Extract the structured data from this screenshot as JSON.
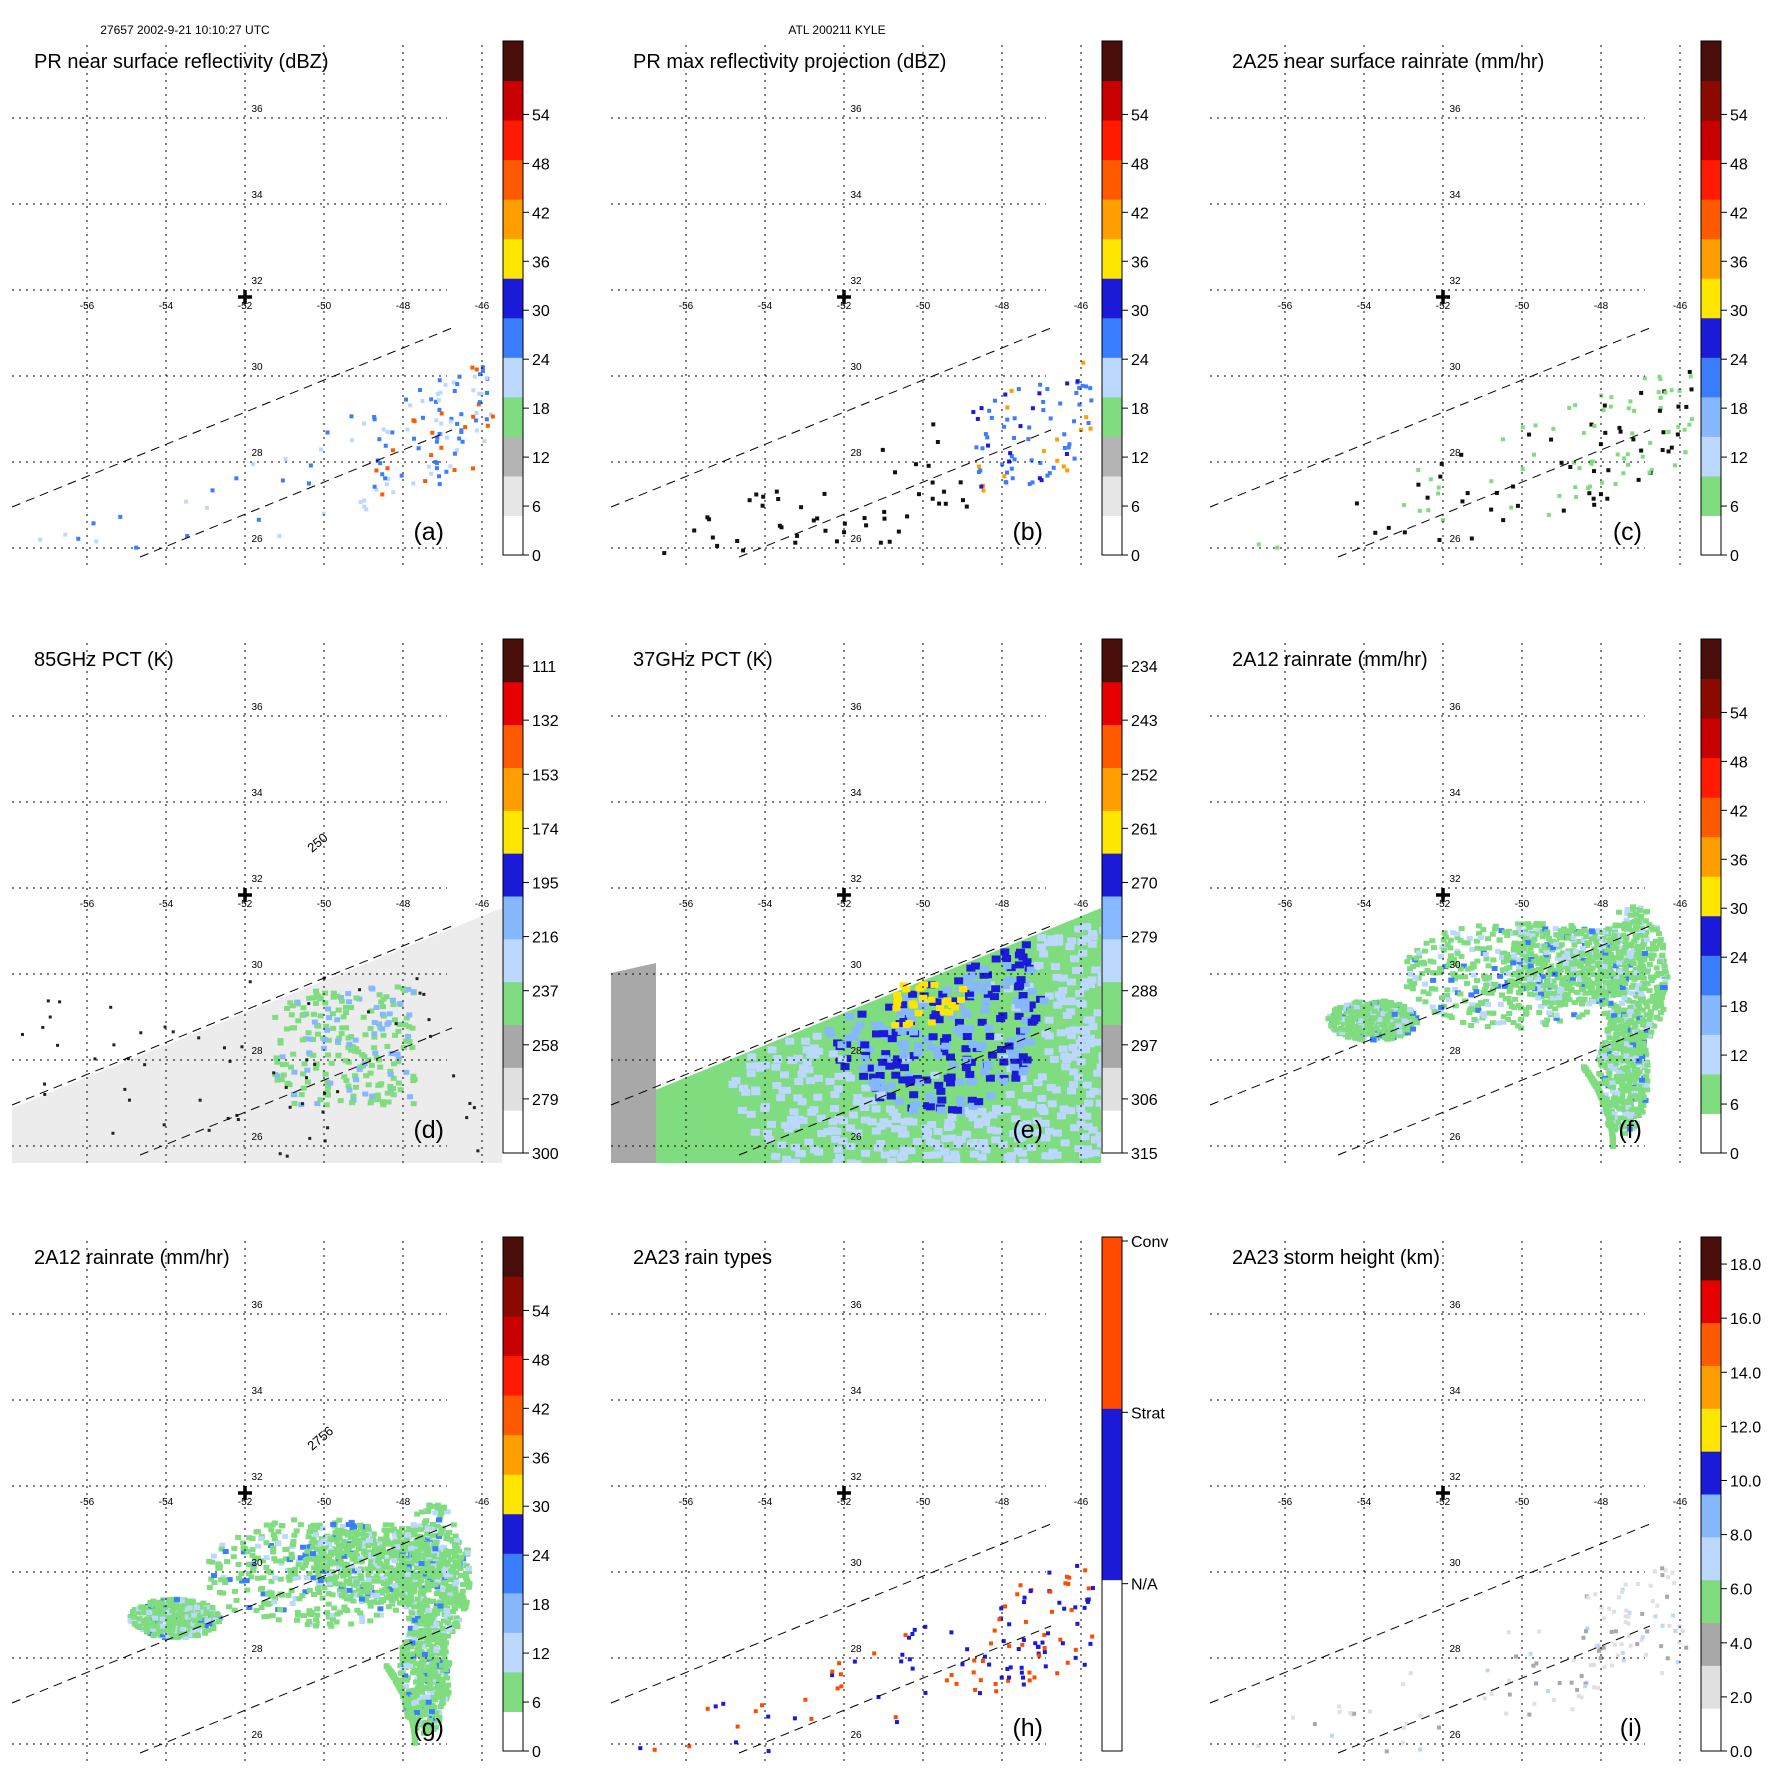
{
  "header": {
    "left": "27657 2002-9-21 10:10:27 UTC",
    "center": "ATL 200211 KYLE"
  },
  "colors": {
    "rain": [
      "#ffffff",
      "#7fdc7f",
      "#bcd8ff",
      "#86b8ff",
      "#3a7dff",
      "#1a1ad8",
      "#ffe600",
      "#ff9e00",
      "#ff5a00",
      "#ff1a00",
      "#c80000",
      "#8a0a00",
      "#4a0e0a"
    ],
    "refl": [
      "#ffffff",
      "#e6e6e6",
      "#b4b4b4",
      "#7fdc7f",
      "#bcd8ff",
      "#3a7dff",
      "#1a1ad8",
      "#ffe600",
      "#ff9e00",
      "#ff5a00",
      "#ff1a00",
      "#c80000",
      "#4a0e0a"
    ],
    "pct": [
      "#ffffff",
      "#e0e0e0",
      "#a8a8a8",
      "#7fdc7f",
      "#bcd8ff",
      "#86b8ff",
      "#1a1ad8",
      "#ffe600",
      "#ff9e00",
      "#ff5a00",
      "#e60000",
      "#4a0e0a"
    ],
    "height": [
      "#ffffff",
      "#e0e0e0",
      "#a8a8a8",
      "#7fdc7f",
      "#bcd8ff",
      "#86b8ff",
      "#1a1ad8",
      "#ffe600",
      "#ff9e00",
      "#ff5a00",
      "#e60000",
      "#4a0e0a"
    ],
    "types": [
      "#ffffff",
      "#1a1ad8",
      "#ff4a00"
    ]
  },
  "chart_data": [
    {
      "id": "a",
      "type": "heatmap",
      "title": "PR near surface reflectivity (dBZ)",
      "label": "(a)",
      "colorbar": {
        "ticks": [
          "0",
          "6",
          "12",
          "18",
          "24",
          "30",
          "36",
          "42",
          "48",
          "54"
        ],
        "palette": "refl"
      },
      "lon_ticks": [
        "-56",
        "-54",
        "-52",
        "-50",
        "-48",
        "-46"
      ],
      "lat_ticks": [
        "26",
        "28",
        "30",
        "32",
        "34",
        "36"
      ],
      "swath": true,
      "field": "pr"
    },
    {
      "id": "b",
      "type": "heatmap",
      "title": "PR max reflectivity projection (dBZ)",
      "label": "(b)",
      "colorbar": {
        "ticks": [
          "0",
          "6",
          "12",
          "18",
          "24",
          "30",
          "36",
          "42",
          "48",
          "54"
        ],
        "palette": "refl"
      },
      "lon_ticks": [
        "-56",
        "-54",
        "-52",
        "-50",
        "-48",
        "-46"
      ],
      "lat_ticks": [
        "26",
        "28",
        "30",
        "32",
        "34",
        "36"
      ],
      "swath": true,
      "field": "prmax"
    },
    {
      "id": "c",
      "type": "heatmap",
      "title": "2A25 near surface rainrate (mm/hr)",
      "label": "(c)",
      "colorbar": {
        "ticks": [
          "0",
          "6",
          "12",
          "18",
          "24",
          "30",
          "36",
          "42",
          "48",
          "54"
        ],
        "palette": "rain"
      },
      "lon_ticks": [
        "-56",
        "-54",
        "-52",
        "-50",
        "-48",
        "-46"
      ],
      "lat_ticks": [
        "26",
        "28",
        "30",
        "32",
        "34",
        "36"
      ],
      "swath": true,
      "field": "pr"
    },
    {
      "id": "d",
      "type": "heatmap",
      "title": "85GHz PCT (K)",
      "label": "(d)",
      "colorbar": {
        "ticks": [
          "300",
          "279",
          "258",
          "237",
          "216",
          "195",
          "174",
          "153",
          "132",
          "111"
        ],
        "palette": "pct"
      },
      "lon_ticks": [
        "-56",
        "-54",
        "-52",
        "-50",
        "-48",
        "-46"
      ],
      "lat_ticks": [
        "26",
        "28",
        "30",
        "32",
        "34",
        "36"
      ],
      "swath": true,
      "field": "pct85",
      "contour_label": "250"
    },
    {
      "id": "e",
      "type": "heatmap",
      "title": "37GHz PCT (K)",
      "label": "(e)",
      "colorbar": {
        "ticks": [
          "315",
          "306",
          "297",
          "288",
          "279",
          "270",
          "261",
          "252",
          "243",
          "234"
        ],
        "palette": "pct"
      },
      "lon_ticks": [
        "-56",
        "-54",
        "-52",
        "-50",
        "-48",
        "-46"
      ],
      "lat_ticks": [
        "26",
        "28",
        "30",
        "32",
        "34",
        "36"
      ],
      "swath": true,
      "field": "pct37"
    },
    {
      "id": "f",
      "type": "heatmap",
      "title": "2A12 rainrate (mm/hr)",
      "label": "(f)",
      "colorbar": {
        "ticks": [
          "0",
          "6",
          "12",
          "18",
          "24",
          "30",
          "36",
          "42",
          "48",
          "54"
        ],
        "palette": "rain"
      },
      "lon_ticks": [
        "-56",
        "-54",
        "-52",
        "-50",
        "-48",
        "-46"
      ],
      "lat_ticks": [
        "26",
        "28",
        "30",
        "32",
        "34",
        "36"
      ],
      "swath": true,
      "field": "tmi"
    },
    {
      "id": "g",
      "type": "heatmap",
      "title": "2A12 rainrate (mm/hr)",
      "label": "(g)",
      "colorbar": {
        "ticks": [
          "0",
          "6",
          "12",
          "18",
          "24",
          "30",
          "36",
          "42",
          "48",
          "54"
        ],
        "palette": "rain"
      },
      "lon_ticks": [
        "-56",
        "-54",
        "-52",
        "-50",
        "-48",
        "-46"
      ],
      "lat_ticks": [
        "26",
        "28",
        "30",
        "32",
        "34",
        "36"
      ],
      "swath": true,
      "field": "tmi",
      "contour_label": "2756"
    },
    {
      "id": "h",
      "type": "heatmap",
      "title": "2A23 rain types",
      "label": "(h)",
      "colorbar": {
        "ticks": [
          "N/A",
          "Strat",
          "Conv"
        ],
        "palette": "types"
      },
      "lon_ticks": [
        "-56",
        "-54",
        "-52",
        "-50",
        "-48",
        "-46"
      ],
      "lat_ticks": [
        "26",
        "28",
        "30",
        "32",
        "34",
        "36"
      ],
      "swath": true,
      "field": "types"
    },
    {
      "id": "i",
      "type": "heatmap",
      "title": "2A23 storm height (km)",
      "label": "(i)",
      "colorbar": {
        "ticks": [
          "0.0",
          "2.0",
          "4.0",
          "6.0",
          "8.0",
          "10.0",
          "12.0",
          "14.0",
          "16.0",
          "18.0"
        ],
        "palette": "height"
      },
      "lon_ticks": [
        "-56",
        "-54",
        "-52",
        "-50",
        "-48",
        "-46"
      ],
      "lat_ticks": [
        "26",
        "28",
        "30",
        "32",
        "34",
        "36"
      ],
      "swath": true,
      "field": "height"
    }
  ]
}
